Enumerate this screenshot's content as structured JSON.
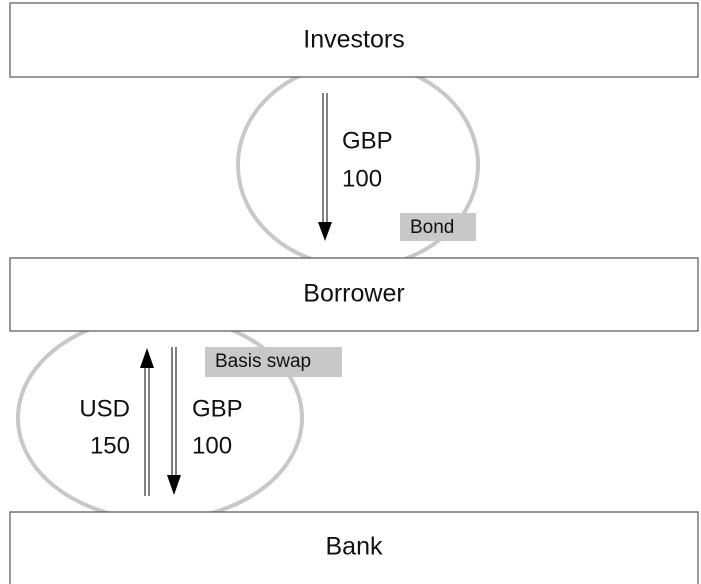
{
  "boxes": [
    "Investors",
    "Borrower",
    "Bank"
  ],
  "flows": [
    {
      "label": "Bond",
      "legs": [
        {
          "currency": "GBP",
          "amount": 100
        }
      ]
    },
    {
      "label": "Basis swap",
      "legs": [
        {
          "currency": "USD",
          "amount": 150
        },
        {
          "currency": "GBP",
          "amount": 100
        }
      ]
    }
  ]
}
